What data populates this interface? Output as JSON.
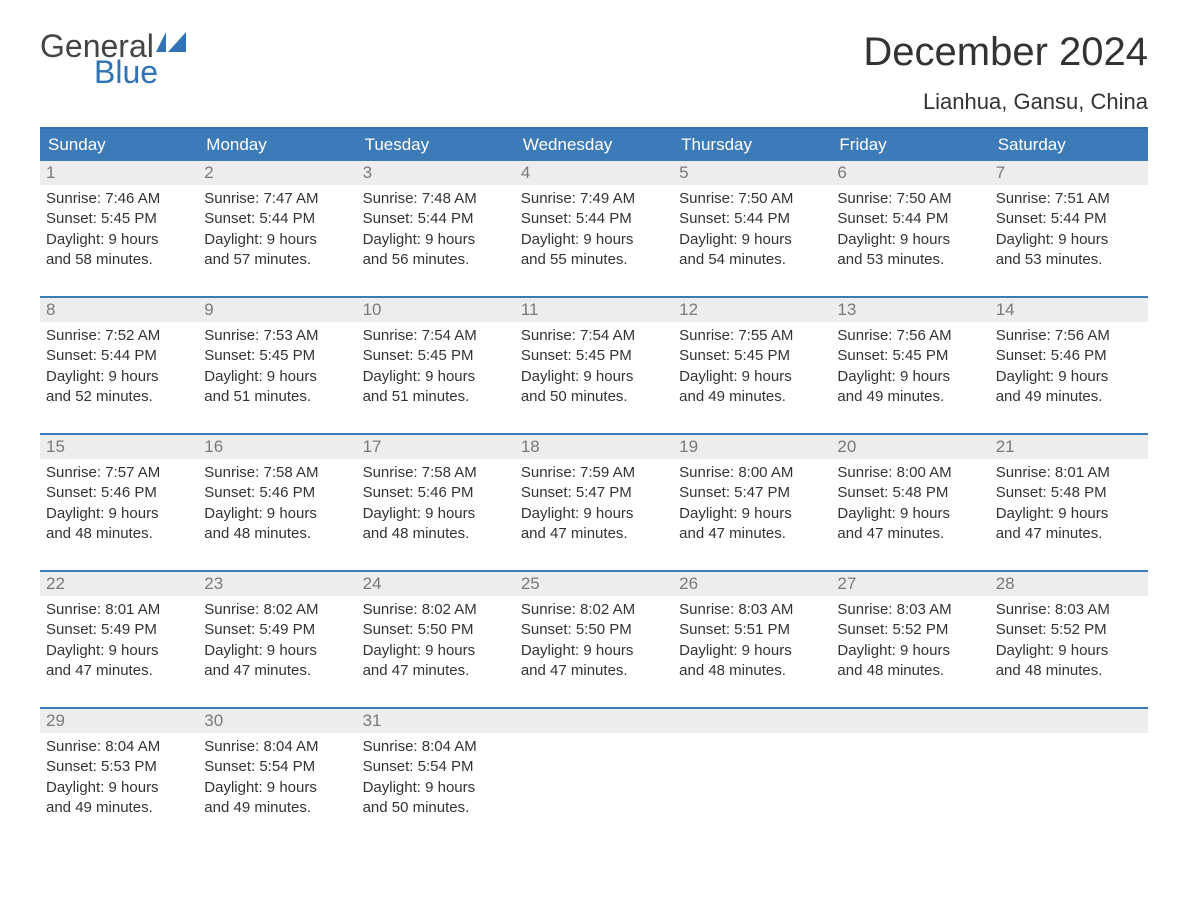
{
  "logo": {
    "word1": "General",
    "word2": "Blue",
    "word1_color": "#444444",
    "word2_color": "#2f72b6"
  },
  "title": "December 2024",
  "location": "Lianhua, Gansu, China",
  "colors": {
    "header_bg": "#3d7ab8",
    "header_text": "#ffffff",
    "week_border": "#3d7ab8",
    "daynum_bg": "#ededed",
    "daynum_text": "#7a7a7a",
    "body_text": "#333333",
    "page_bg": "#ffffff"
  },
  "typography": {
    "title_fontsize": 40,
    "location_fontsize": 22,
    "dow_fontsize": 17,
    "body_fontsize": 15
  },
  "layout": {
    "columns": 7,
    "weeks": 5
  },
  "days_of_week": [
    "Sunday",
    "Monday",
    "Tuesday",
    "Wednesday",
    "Thursday",
    "Friday",
    "Saturday"
  ],
  "days": [
    {
      "n": "1",
      "sunrise": "Sunrise: 7:46 AM",
      "sunset": "Sunset: 5:45 PM",
      "dl1": "Daylight: 9 hours",
      "dl2": "and 58 minutes."
    },
    {
      "n": "2",
      "sunrise": "Sunrise: 7:47 AM",
      "sunset": "Sunset: 5:44 PM",
      "dl1": "Daylight: 9 hours",
      "dl2": "and 57 minutes."
    },
    {
      "n": "3",
      "sunrise": "Sunrise: 7:48 AM",
      "sunset": "Sunset: 5:44 PM",
      "dl1": "Daylight: 9 hours",
      "dl2": "and 56 minutes."
    },
    {
      "n": "4",
      "sunrise": "Sunrise: 7:49 AM",
      "sunset": "Sunset: 5:44 PM",
      "dl1": "Daylight: 9 hours",
      "dl2": "and 55 minutes."
    },
    {
      "n": "5",
      "sunrise": "Sunrise: 7:50 AM",
      "sunset": "Sunset: 5:44 PM",
      "dl1": "Daylight: 9 hours",
      "dl2": "and 54 minutes."
    },
    {
      "n": "6",
      "sunrise": "Sunrise: 7:50 AM",
      "sunset": "Sunset: 5:44 PM",
      "dl1": "Daylight: 9 hours",
      "dl2": "and 53 minutes."
    },
    {
      "n": "7",
      "sunrise": "Sunrise: 7:51 AM",
      "sunset": "Sunset: 5:44 PM",
      "dl1": "Daylight: 9 hours",
      "dl2": "and 53 minutes."
    },
    {
      "n": "8",
      "sunrise": "Sunrise: 7:52 AM",
      "sunset": "Sunset: 5:44 PM",
      "dl1": "Daylight: 9 hours",
      "dl2": "and 52 minutes."
    },
    {
      "n": "9",
      "sunrise": "Sunrise: 7:53 AM",
      "sunset": "Sunset: 5:45 PM",
      "dl1": "Daylight: 9 hours",
      "dl2": "and 51 minutes."
    },
    {
      "n": "10",
      "sunrise": "Sunrise: 7:54 AM",
      "sunset": "Sunset: 5:45 PM",
      "dl1": "Daylight: 9 hours",
      "dl2": "and 51 minutes."
    },
    {
      "n": "11",
      "sunrise": "Sunrise: 7:54 AM",
      "sunset": "Sunset: 5:45 PM",
      "dl1": "Daylight: 9 hours",
      "dl2": "and 50 minutes."
    },
    {
      "n": "12",
      "sunrise": "Sunrise: 7:55 AM",
      "sunset": "Sunset: 5:45 PM",
      "dl1": "Daylight: 9 hours",
      "dl2": "and 49 minutes."
    },
    {
      "n": "13",
      "sunrise": "Sunrise: 7:56 AM",
      "sunset": "Sunset: 5:45 PM",
      "dl1": "Daylight: 9 hours",
      "dl2": "and 49 minutes."
    },
    {
      "n": "14",
      "sunrise": "Sunrise: 7:56 AM",
      "sunset": "Sunset: 5:46 PM",
      "dl1": "Daylight: 9 hours",
      "dl2": "and 49 minutes."
    },
    {
      "n": "15",
      "sunrise": "Sunrise: 7:57 AM",
      "sunset": "Sunset: 5:46 PM",
      "dl1": "Daylight: 9 hours",
      "dl2": "and 48 minutes."
    },
    {
      "n": "16",
      "sunrise": "Sunrise: 7:58 AM",
      "sunset": "Sunset: 5:46 PM",
      "dl1": "Daylight: 9 hours",
      "dl2": "and 48 minutes."
    },
    {
      "n": "17",
      "sunrise": "Sunrise: 7:58 AM",
      "sunset": "Sunset: 5:46 PM",
      "dl1": "Daylight: 9 hours",
      "dl2": "and 48 minutes."
    },
    {
      "n": "18",
      "sunrise": "Sunrise: 7:59 AM",
      "sunset": "Sunset: 5:47 PM",
      "dl1": "Daylight: 9 hours",
      "dl2": "and 47 minutes."
    },
    {
      "n": "19",
      "sunrise": "Sunrise: 8:00 AM",
      "sunset": "Sunset: 5:47 PM",
      "dl1": "Daylight: 9 hours",
      "dl2": "and 47 minutes."
    },
    {
      "n": "20",
      "sunrise": "Sunrise: 8:00 AM",
      "sunset": "Sunset: 5:48 PM",
      "dl1": "Daylight: 9 hours",
      "dl2": "and 47 minutes."
    },
    {
      "n": "21",
      "sunrise": "Sunrise: 8:01 AM",
      "sunset": "Sunset: 5:48 PM",
      "dl1": "Daylight: 9 hours",
      "dl2": "and 47 minutes."
    },
    {
      "n": "22",
      "sunrise": "Sunrise: 8:01 AM",
      "sunset": "Sunset: 5:49 PM",
      "dl1": "Daylight: 9 hours",
      "dl2": "and 47 minutes."
    },
    {
      "n": "23",
      "sunrise": "Sunrise: 8:02 AM",
      "sunset": "Sunset: 5:49 PM",
      "dl1": "Daylight: 9 hours",
      "dl2": "and 47 minutes."
    },
    {
      "n": "24",
      "sunrise": "Sunrise: 8:02 AM",
      "sunset": "Sunset: 5:50 PM",
      "dl1": "Daylight: 9 hours",
      "dl2": "and 47 minutes."
    },
    {
      "n": "25",
      "sunrise": "Sunrise: 8:02 AM",
      "sunset": "Sunset: 5:50 PM",
      "dl1": "Daylight: 9 hours",
      "dl2": "and 47 minutes."
    },
    {
      "n": "26",
      "sunrise": "Sunrise: 8:03 AM",
      "sunset": "Sunset: 5:51 PM",
      "dl1": "Daylight: 9 hours",
      "dl2": "and 48 minutes."
    },
    {
      "n": "27",
      "sunrise": "Sunrise: 8:03 AM",
      "sunset": "Sunset: 5:52 PM",
      "dl1": "Daylight: 9 hours",
      "dl2": "and 48 minutes."
    },
    {
      "n": "28",
      "sunrise": "Sunrise: 8:03 AM",
      "sunset": "Sunset: 5:52 PM",
      "dl1": "Daylight: 9 hours",
      "dl2": "and 48 minutes."
    },
    {
      "n": "29",
      "sunrise": "Sunrise: 8:04 AM",
      "sunset": "Sunset: 5:53 PM",
      "dl1": "Daylight: 9 hours",
      "dl2": "and 49 minutes."
    },
    {
      "n": "30",
      "sunrise": "Sunrise: 8:04 AM",
      "sunset": "Sunset: 5:54 PM",
      "dl1": "Daylight: 9 hours",
      "dl2": "and 49 minutes."
    },
    {
      "n": "31",
      "sunrise": "Sunrise: 8:04 AM",
      "sunset": "Sunset: 5:54 PM",
      "dl1": "Daylight: 9 hours",
      "dl2": "and 50 minutes."
    }
  ]
}
